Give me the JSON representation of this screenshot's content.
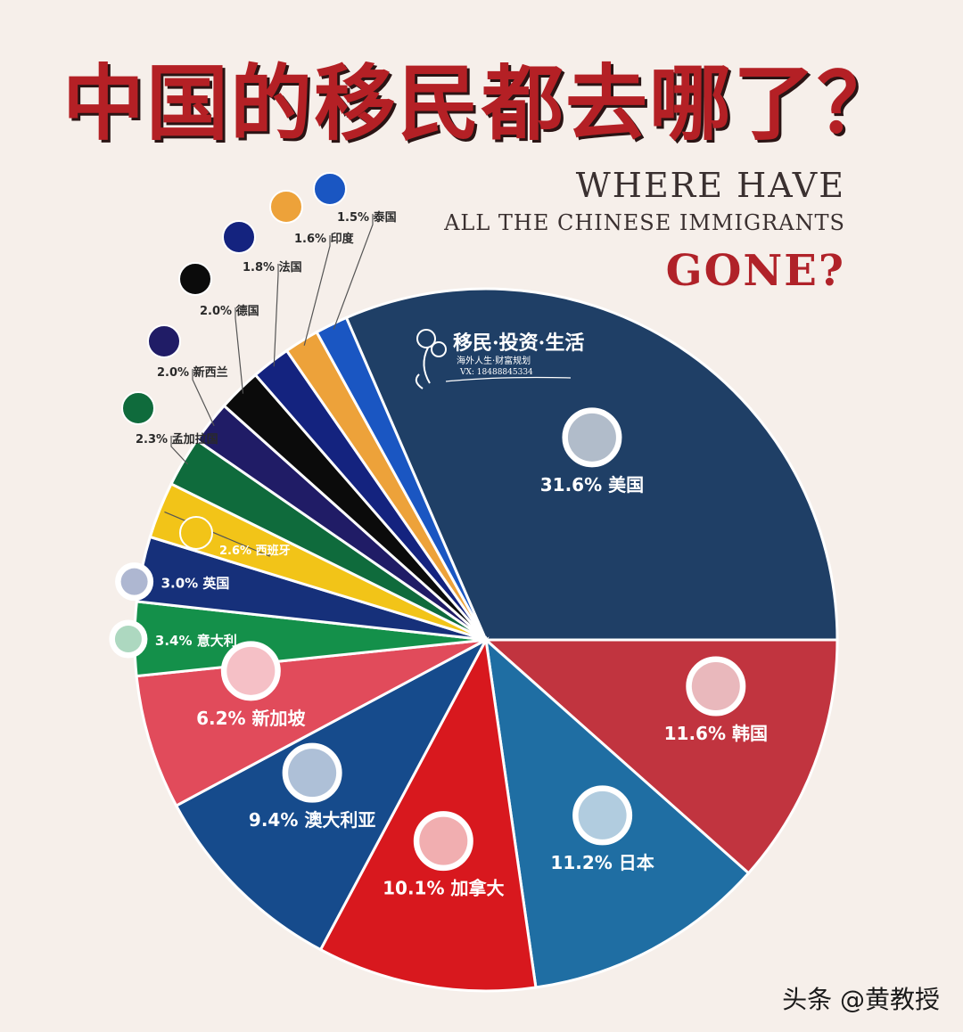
{
  "title": "中国的移民都去哪了？",
  "subtitle": {
    "line1": "WHERE HAVE",
    "line2": "ALL THE CHINESE IMMIGRANTS",
    "line3": "GONE?"
  },
  "logo": {
    "name": "移民·投资·生活",
    "tagline": "海外人生·财富规划",
    "contact": "VX: 18488845334"
  },
  "watermark": "头条 @黄教授",
  "chart_data": {
    "type": "pie",
    "title": "中国的移民都去哪了？",
    "unit": "%",
    "slices": [
      {
        "label": "美国",
        "value": 31.6,
        "color": "#1f3f66",
        "flag": "usa-flag-icon"
      },
      {
        "label": "韩国",
        "value": 11.6,
        "color": "#c1343f",
        "flag": "korea-flag-icon"
      },
      {
        "label": "日本",
        "value": 11.2,
        "color": "#1f6ea3",
        "flag": "japan-flag-icon"
      },
      {
        "label": "加拿大",
        "value": 10.1,
        "color": "#d8181e",
        "flag": "canada-flag-icon"
      },
      {
        "label": "澳大利亚",
        "value": 9.4,
        "color": "#164b8c",
        "flag": "australia-flag-icon"
      },
      {
        "label": "新加坡",
        "value": 6.2,
        "color": "#e14b5b",
        "flag": "singapore-flag-icon"
      },
      {
        "label": "意大利",
        "value": 3.4,
        "color": "#14904a",
        "flag": "italy-flag-icon"
      },
      {
        "label": "英国",
        "value": 3.0,
        "color": "#16307a",
        "flag": "uk-flag-icon"
      },
      {
        "label": "西班牙",
        "value": 2.6,
        "color": "#f2c418",
        "flag": "spain-flag-icon"
      },
      {
        "label": "孟加拉国",
        "value": 2.3,
        "color": "#0f6b3c",
        "flag": "bangladesh-flag-icon"
      },
      {
        "label": "新西兰",
        "value": 2.0,
        "color": "#201c66",
        "flag": "newzealand-flag-icon"
      },
      {
        "label": "德国",
        "value": 2.0,
        "color": "#0b0b0b",
        "flag": "germany-flag-icon"
      },
      {
        "label": "法国",
        "value": 1.8,
        "color": "#14237f",
        "flag": "france-flag-icon"
      },
      {
        "label": "印度",
        "value": 1.6,
        "color": "#eda23a",
        "flag": "india-flag-icon"
      },
      {
        "label": "泰国",
        "value": 1.5,
        "color": "#1a56c2",
        "flag": "thailand-flag-icon"
      }
    ]
  }
}
